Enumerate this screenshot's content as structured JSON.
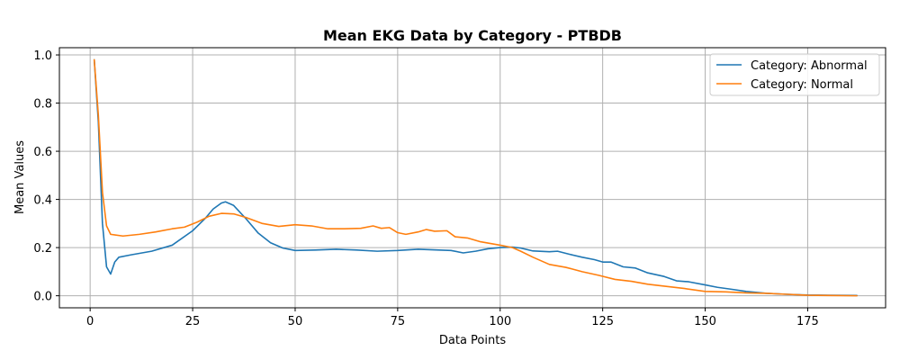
{
  "chart_data": {
    "type": "line",
    "title": "Mean EKG Data by Category - PTBDB",
    "xlabel": "Data Points",
    "ylabel": "Mean Values",
    "xlim": [
      -7.5,
      194
    ],
    "ylim": [
      -0.05,
      1.03
    ],
    "xticks": [
      0,
      25,
      50,
      75,
      100,
      125,
      150,
      175
    ],
    "yticks": [
      0.0,
      0.2,
      0.4,
      0.6,
      0.8,
      1.0
    ],
    "grid": true,
    "legend_position": "upper-right",
    "series": [
      {
        "name": "Category: Abnormal",
        "color": "#1f77b4",
        "points": [
          [
            1,
            0.98
          ],
          [
            2,
            0.72
          ],
          [
            3,
            0.3
          ],
          [
            4,
            0.12
          ],
          [
            5,
            0.09
          ],
          [
            6,
            0.14
          ],
          [
            7,
            0.16
          ],
          [
            10,
            0.17
          ],
          [
            15,
            0.185
          ],
          [
            20,
            0.21
          ],
          [
            25,
            0.27
          ],
          [
            28,
            0.32
          ],
          [
            30,
            0.36
          ],
          [
            32,
            0.385
          ],
          [
            33,
            0.39
          ],
          [
            35,
            0.375
          ],
          [
            38,
            0.32
          ],
          [
            41,
            0.26
          ],
          [
            44,
            0.22
          ],
          [
            47,
            0.198
          ],
          [
            50,
            0.188
          ],
          [
            55,
            0.19
          ],
          [
            60,
            0.193
          ],
          [
            65,
            0.19
          ],
          [
            70,
            0.185
          ],
          [
            75,
            0.188
          ],
          [
            80,
            0.193
          ],
          [
            85,
            0.19
          ],
          [
            88,
            0.188
          ],
          [
            91,
            0.178
          ],
          [
            94,
            0.185
          ],
          [
            97,
            0.195
          ],
          [
            100,
            0.2
          ],
          [
            103,
            0.202
          ],
          [
            105,
            0.198
          ],
          [
            108,
            0.186
          ],
          [
            112,
            0.183
          ],
          [
            114,
            0.185
          ],
          [
            117,
            0.172
          ],
          [
            120,
            0.16
          ],
          [
            123,
            0.15
          ],
          [
            125,
            0.14
          ],
          [
            127,
            0.14
          ],
          [
            130,
            0.12
          ],
          [
            133,
            0.115
          ],
          [
            136,
            0.095
          ],
          [
            140,
            0.08
          ],
          [
            143,
            0.062
          ],
          [
            146,
            0.058
          ],
          [
            150,
            0.045
          ],
          [
            153,
            0.035
          ],
          [
            156,
            0.028
          ],
          [
            160,
            0.018
          ],
          [
            165,
            0.01
          ],
          [
            170,
            0.006
          ],
          [
            175,
            0.003
          ],
          [
            180,
            0.002
          ],
          [
            187,
            0.001
          ]
        ]
      },
      {
        "name": "Category: Normal",
        "color": "#ff7f0e",
        "points": [
          [
            1,
            0.98
          ],
          [
            2,
            0.75
          ],
          [
            3,
            0.43
          ],
          [
            4,
            0.29
          ],
          [
            5,
            0.255
          ],
          [
            8,
            0.248
          ],
          [
            12,
            0.255
          ],
          [
            16,
            0.265
          ],
          [
            20,
            0.278
          ],
          [
            23,
            0.285
          ],
          [
            26,
            0.305
          ],
          [
            29,
            0.33
          ],
          [
            32,
            0.342
          ],
          [
            35,
            0.34
          ],
          [
            38,
            0.325
          ],
          [
            42,
            0.3
          ],
          [
            46,
            0.288
          ],
          [
            50,
            0.295
          ],
          [
            54,
            0.29
          ],
          [
            58,
            0.278
          ],
          [
            62,
            0.278
          ],
          [
            66,
            0.28
          ],
          [
            69,
            0.29
          ],
          [
            71,
            0.28
          ],
          [
            73,
            0.283
          ],
          [
            75,
            0.262
          ],
          [
            77,
            0.255
          ],
          [
            80,
            0.265
          ],
          [
            82,
            0.275
          ],
          [
            84,
            0.268
          ],
          [
            87,
            0.27
          ],
          [
            89,
            0.245
          ],
          [
            92,
            0.24
          ],
          [
            95,
            0.225
          ],
          [
            100,
            0.21
          ],
          [
            103,
            0.2
          ],
          [
            105,
            0.185
          ],
          [
            108,
            0.16
          ],
          [
            112,
            0.13
          ],
          [
            116,
            0.118
          ],
          [
            120,
            0.1
          ],
          [
            124,
            0.085
          ],
          [
            128,
            0.068
          ],
          [
            132,
            0.06
          ],
          [
            136,
            0.048
          ],
          [
            140,
            0.04
          ],
          [
            145,
            0.03
          ],
          [
            150,
            0.018
          ],
          [
            155,
            0.016
          ],
          [
            160,
            0.012
          ],
          [
            165,
            0.01
          ],
          [
            170,
            0.006
          ],
          [
            175,
            0.002
          ],
          [
            180,
            0.001
          ],
          [
            187,
            0.0
          ]
        ]
      }
    ]
  }
}
